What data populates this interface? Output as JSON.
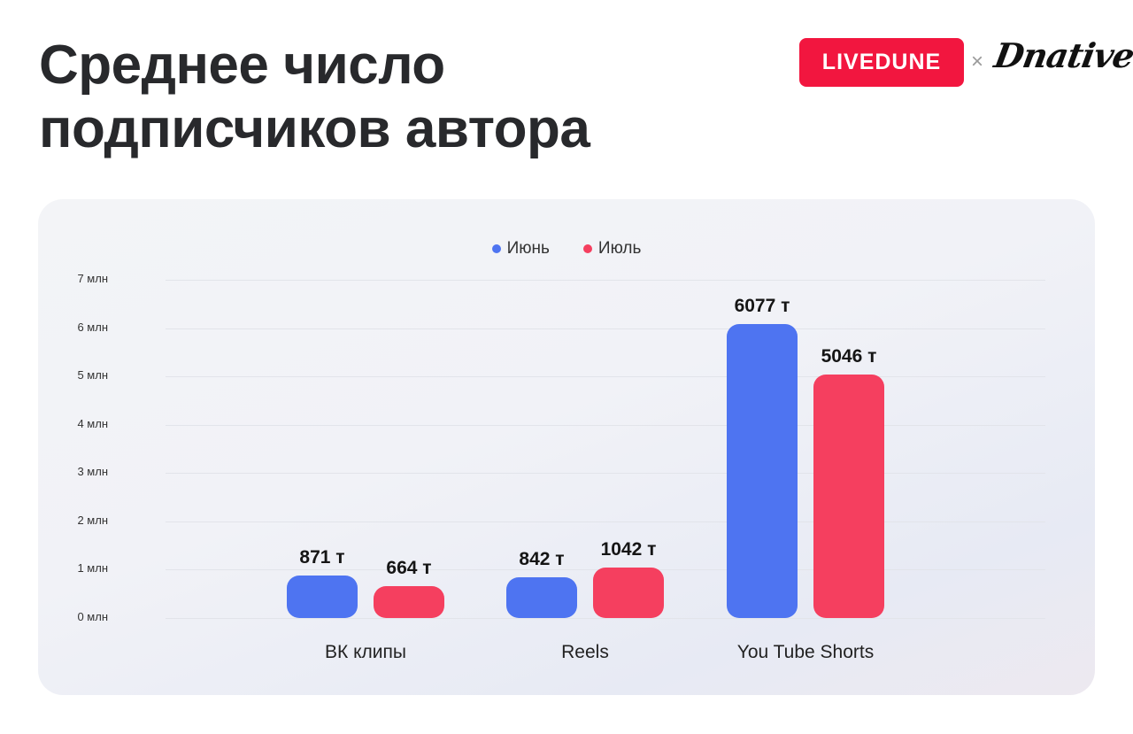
{
  "header": {
    "title_line1": "Среднее число",
    "title_line2": "подписчиков автора",
    "brand_primary": "LIVEDUNE",
    "brand_separator": "×",
    "brand_secondary": "Dnative"
  },
  "colors": {
    "june": "#4e74f1",
    "july": "#f53f5f",
    "brand": "#f2163f"
  },
  "chart_data": {
    "type": "bar",
    "title": "Среднее число подписчиков автора",
    "xlabel": "",
    "ylabel": "",
    "ylim": [
      0,
      7000000
    ],
    "yticks": [
      "0 млн",
      "1 млн",
      "2 млн",
      "3 млн",
      "4 млн",
      "5 млн",
      "6 млн",
      "7 млн"
    ],
    "categories": [
      "ВК клипы",
      "Reels",
      "You Tube Shorts"
    ],
    "series": [
      {
        "name": "Июнь",
        "color": "#4e74f1",
        "values": [
          871000,
          842000,
          6077000
        ],
        "labels": [
          "871 т",
          "842 т",
          "6077 т"
        ]
      },
      {
        "name": "Июль",
        "color": "#f53f5f",
        "values": [
          664000,
          1042000,
          5046000
        ],
        "labels": [
          "664 т",
          "1042 т",
          "5046 т"
        ]
      }
    ],
    "legend_position": "top",
    "grid": true
  }
}
